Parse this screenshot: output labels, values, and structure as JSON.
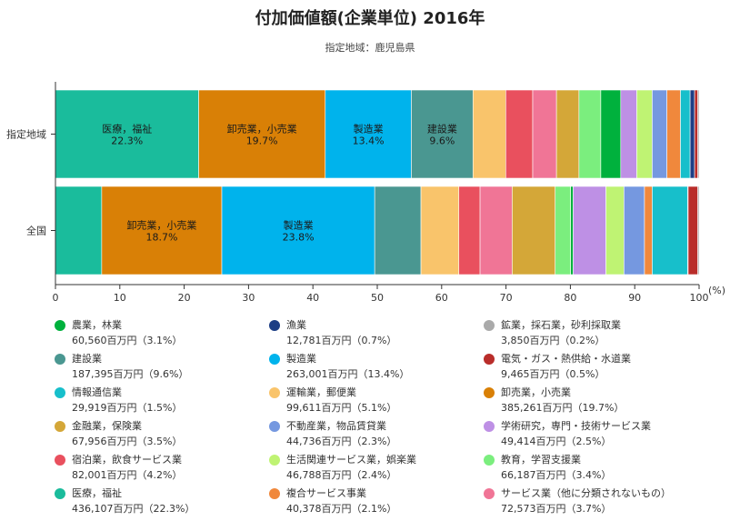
{
  "title": "付加価値額(企業単位) 2016年",
  "subtitle": "指定地域：鹿児島県",
  "chart_data": {
    "type": "bar",
    "orientation": "horizontal",
    "stacked": "percent",
    "title": "付加価値額(企業単位) 2016年",
    "subtitle": "指定地域：鹿児島県",
    "xlim": [
      0,
      100
    ],
    "x_ticks": [
      "0",
      "10",
      "20",
      "30",
      "40",
      "50",
      "60",
      "70",
      "80",
      "90",
      "100"
    ],
    "x_unit_label": "(%)",
    "categories": [
      "指定地域",
      "全国"
    ],
    "segment_colors": [
      "#1ABC9C",
      "#D98006",
      "#00B3EC",
      "#4A9791",
      "#F9C46B",
      "#E9505E",
      "#F07596",
      "#D4A738",
      "#7BEE7E",
      "#00B13D",
      "#BE90E5",
      "#BFF373",
      "#7598E0",
      "#F0883C",
      "#17BFCB",
      "#1D3E85",
      "#B92D2A",
      "#AAAAAA"
    ],
    "series": [
      {
        "values": [
          22.3,
          7.2
        ],
        "labels": [
          "医療，福祉\n22.3%",
          ""
        ]
      },
      {
        "values": [
          19.7,
          18.7
        ],
        "labels": [
          "卸売業，小売業\n19.7%",
          "卸売業，小売業\n18.7%"
        ]
      },
      {
        "values": [
          13.4,
          23.8
        ],
        "labels": [
          "製造業\n13.4%",
          "製造業\n23.8%"
        ]
      },
      {
        "values": [
          9.6,
          7.2
        ],
        "labels": [
          "建設業\n9.6%",
          ""
        ]
      },
      {
        "values": [
          5.1,
          5.9
        ]
      },
      {
        "values": [
          4.2,
          3.3
        ]
      },
      {
        "values": [
          3.7,
          5.0
        ]
      },
      {
        "values": [
          3.5,
          6.7
        ]
      },
      {
        "values": [
          3.4,
          2.4
        ]
      },
      {
        "values": [
          3.1,
          0.4
        ]
      },
      {
        "values": [
          2.5,
          5.1
        ]
      },
      {
        "values": [
          2.4,
          2.8
        ]
      },
      {
        "values": [
          2.3,
          3.2
        ]
      },
      {
        "values": [
          2.1,
          1.2
        ]
      },
      {
        "values": [
          1.5,
          5.5
        ]
      },
      {
        "values": [
          0.7,
          0.1
        ]
      },
      {
        "values": [
          0.5,
          1.5
        ]
      },
      {
        "values": [
          0.2,
          0.2
        ]
      }
    ]
  },
  "legend": [
    {
      "name": "農業，林業",
      "value": "60,560百万円（3.1%）",
      "color": "#00B13D"
    },
    {
      "name": "漁業",
      "value": "12,781百万円（0.7%）",
      "color": "#1D3E85"
    },
    {
      "name": "鉱業，採石業，砂利採取業",
      "value": "3,850百万円（0.2%）",
      "color": "#AAAAAA"
    },
    {
      "name": "建設業",
      "value": "187,395百万円（9.6%）",
      "color": "#4A9791"
    },
    {
      "name": "製造業",
      "value": "263,001百万円（13.4%）",
      "color": "#00B3EC"
    },
    {
      "name": "電気・ガス・熱供給・水道業",
      "value": "9,465百万円（0.5%）",
      "color": "#B92D2A"
    },
    {
      "name": "情報通信業",
      "value": "29,919百万円（1.5%）",
      "color": "#17BFCB"
    },
    {
      "name": "運輸業，郵便業",
      "value": "99,611百万円（5.1%）",
      "color": "#F9C46B"
    },
    {
      "name": "卸売業，小売業",
      "value": "385,261百万円（19.7%）",
      "color": "#D98006"
    },
    {
      "name": "金融業，保険業",
      "value": "67,956百万円（3.5%）",
      "color": "#D4A738"
    },
    {
      "name": "不動産業，物品賃貸業",
      "value": "44,736百万円（2.3%）",
      "color": "#7598E0"
    },
    {
      "name": "学術研究，専門・技術サービス業",
      "value": "49,414百万円（2.5%）",
      "color": "#BE90E5"
    },
    {
      "name": "宿泊業，飲食サービス業",
      "value": "82,001百万円（4.2%）",
      "color": "#E9505E"
    },
    {
      "name": "生活関連サービス業，娯楽業",
      "value": "46,788百万円（2.4%）",
      "color": "#BFF373"
    },
    {
      "name": "教育，学習支援業",
      "value": "66,187百万円（3.4%）",
      "color": "#7BEE7E"
    },
    {
      "name": "医療，福祉",
      "value": "436,107百万円（22.3%）",
      "color": "#1ABC9C"
    },
    {
      "name": "複合サービス事業",
      "value": "40,378百万円（2.1%）",
      "color": "#F0883C"
    },
    {
      "name": "サービス業（他に分類されないもの）",
      "value": "72,573百万円（3.7%）",
      "color": "#F07596"
    }
  ]
}
